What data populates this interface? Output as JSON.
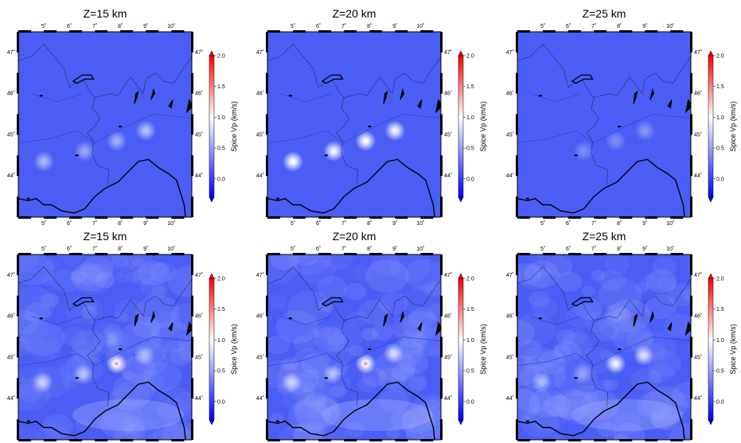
{
  "figure": {
    "panels": [
      {
        "title": "Z=15 km",
        "row": 0,
        "col": 0,
        "anomalies": [
          [
            5.0,
            44.35,
            0.55
          ],
          [
            6.6,
            44.6,
            0.45
          ],
          [
            7.85,
            44.85,
            0.5
          ],
          [
            9.0,
            45.1,
            0.6
          ]
        ],
        "noisy": false
      },
      {
        "title": "Z=20 km",
        "row": 0,
        "col": 1,
        "anomalies": [
          [
            5.0,
            44.35,
            1.0
          ],
          [
            6.6,
            44.6,
            0.95
          ],
          [
            7.85,
            44.85,
            1.0
          ],
          [
            9.0,
            45.1,
            0.95
          ]
        ],
        "noisy": false
      },
      {
        "title": "Z=25 km",
        "row": 0,
        "col": 2,
        "anomalies": [
          [
            6.6,
            44.6,
            0.3
          ],
          [
            7.85,
            44.85,
            0.3
          ],
          [
            9.0,
            45.1,
            0.35
          ]
        ],
        "noisy": false
      },
      {
        "title": "Z=15 km",
        "row": 1,
        "col": 0,
        "anomalies": [
          [
            4.95,
            44.4,
            0.7
          ],
          [
            6.55,
            44.6,
            0.6
          ],
          [
            7.85,
            44.85,
            1.7
          ],
          [
            8.95,
            45.05,
            0.5
          ],
          [
            7.7,
            45.4,
            0.3
          ]
        ],
        "noisy": true
      },
      {
        "title": "Z=20 km",
        "row": 1,
        "col": 1,
        "anomalies": [
          [
            4.95,
            44.4,
            0.7
          ],
          [
            6.55,
            44.6,
            0.6
          ],
          [
            7.85,
            44.85,
            1.6
          ],
          [
            8.95,
            45.1,
            0.75
          ]
        ],
        "noisy": true
      },
      {
        "title": "Z=25 km",
        "row": 1,
        "col": 2,
        "anomalies": [
          [
            4.95,
            44.4,
            0.5
          ],
          [
            6.55,
            44.6,
            0.4
          ],
          [
            7.85,
            44.85,
            0.95
          ],
          [
            8.95,
            45.05,
            0.8
          ]
        ],
        "noisy": true
      }
    ],
    "map_extent": {
      "lon": [
        4.0,
        10.8
      ],
      "lat": [
        43.0,
        47.5
      ]
    },
    "lon_ticks": [
      "5˚",
      "6˚",
      "7˚",
      "8˚",
      "9˚",
      "10˚"
    ],
    "lon_values": [
      5,
      6,
      7,
      8,
      9,
      10
    ],
    "lat_ticks": [
      "44˚",
      "45˚",
      "46˚",
      "47˚"
    ],
    "lat_values": [
      44,
      45,
      46,
      47
    ],
    "colorbar": {
      "label": "Spice Vp (km/s)",
      "min": -0.3,
      "max": 2.0,
      "tick_labels": [
        "0.0",
        "0.5",
        "1.0",
        "1.5",
        "2.0"
      ],
      "tick_values": [
        0.0,
        0.5,
        1.0,
        1.5,
        2.0
      ],
      "colors": {
        "low": "#0000ff",
        "mid": "#ffffff",
        "high": "#ff0000",
        "background": "#4a5ef5"
      }
    }
  }
}
